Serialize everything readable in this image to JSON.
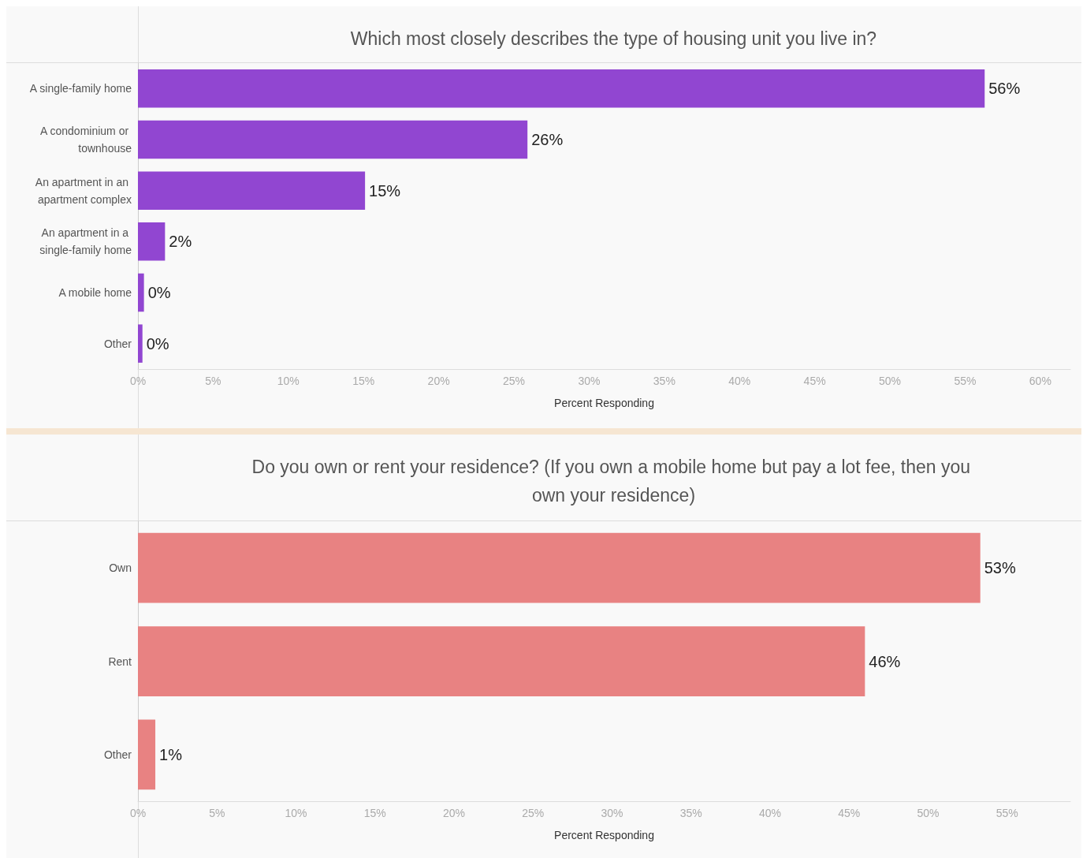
{
  "chart_data": [
    {
      "type": "bar",
      "orientation": "horizontal",
      "title": "Which most closely describes the type of housing unit you live in?",
      "xlabel": "Percent Responding",
      "categories": [
        "A single-family home",
        "A condominium or townhouse",
        "An apartment in an apartment complex",
        "An apartment in a single-family home",
        "A mobile home",
        "Other"
      ],
      "series": [
        {
          "color": "#9146d1",
          "values": [
            56.3,
            25.9,
            15.1,
            1.8,
            0.4,
            0.3
          ],
          "value_labels": [
            "56%",
            "26%",
            "15%",
            "2%",
            "0%",
            "0%"
          ]
        }
      ],
      "xlim": [
        0,
        62
      ],
      "xticks": [
        {
          "value": 0,
          "label": "0%"
        },
        {
          "value": 5,
          "label": "5%"
        },
        {
          "value": 10,
          "label": "10%"
        },
        {
          "value": 15,
          "label": "15%"
        },
        {
          "value": 20,
          "label": "20%"
        },
        {
          "value": 25,
          "label": "25%"
        },
        {
          "value": 30,
          "label": "30%"
        },
        {
          "value": 35,
          "label": "35%"
        },
        {
          "value": 40,
          "label": "40%"
        },
        {
          "value": 45,
          "label": "45%"
        },
        {
          "value": 50,
          "label": "50%"
        },
        {
          "value": 55,
          "label": "55%"
        },
        {
          "value": 60,
          "label": "60%"
        }
      ],
      "grid": false
    },
    {
      "type": "bar",
      "orientation": "horizontal",
      "title": "Do you own or rent your residence? (If you own a mobile home but pay a lot fee, then you own your residence)",
      "xlabel": "Percent Responding",
      "categories": [
        "Own",
        "Rent",
        "Other"
      ],
      "series": [
        {
          "color": "#e88282",
          "values": [
            53.3,
            46.0,
            1.1
          ],
          "value_labels": [
            "53%",
            "46%",
            "1%"
          ]
        }
      ],
      "xlim": [
        0,
        59
      ],
      "xticks": [
        {
          "value": 0,
          "label": "0%"
        },
        {
          "value": 5,
          "label": "5%"
        },
        {
          "value": 10,
          "label": "10%"
        },
        {
          "value": 15,
          "label": "15%"
        },
        {
          "value": 20,
          "label": "20%"
        },
        {
          "value": 25,
          "label": "25%"
        },
        {
          "value": 30,
          "label": "30%"
        },
        {
          "value": 35,
          "label": "35%"
        },
        {
          "value": 40,
          "label": "40%"
        },
        {
          "value": 45,
          "label": "45%"
        },
        {
          "value": 50,
          "label": "50%"
        },
        {
          "value": 55,
          "label": "55%"
        }
      ],
      "grid": false
    }
  ]
}
